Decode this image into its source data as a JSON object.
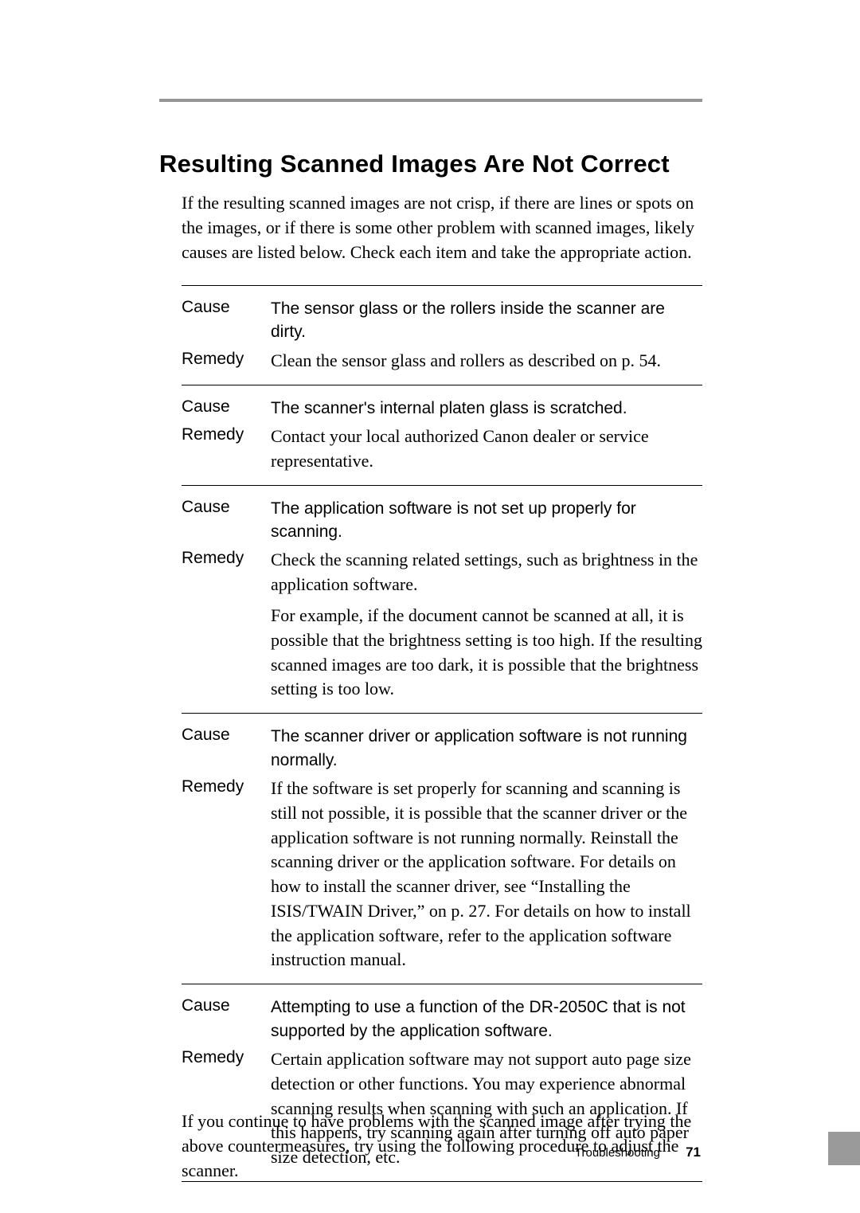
{
  "colors": {
    "top_rule": "#959595",
    "side_tab": "#9a9a9a",
    "text": "#000000",
    "background": "#ffffff",
    "divider": "#000000"
  },
  "typography": {
    "heading_family": "Arial, Helvetica, sans-serif",
    "heading_weight": "bold",
    "heading_size_pt": 23,
    "body_family": "Times New Roman, Times, serif",
    "body_size_pt": 16,
    "label_family": "Arial, Helvetica, sans-serif",
    "label_size_pt": 15
  },
  "heading": "Resulting Scanned Images Are Not Correct",
  "intro": "If the resulting scanned images are not crisp, if there are lines or spots on the images, or if there is some other problem with scanned images, likely causes are listed below. Check each item and take the appropriate action.",
  "labels": {
    "cause": "Cause",
    "remedy": "Remedy"
  },
  "groups": [
    {
      "cause": "The sensor glass or the rollers inside the scanner are dirty.",
      "remedy": [
        "Clean the sensor glass and rollers as described on p. 54."
      ]
    },
    {
      "cause": "The scanner's internal platen glass is scratched.",
      "remedy": [
        "Contact your local authorized Canon dealer or service representative."
      ]
    },
    {
      "cause": "The application software is not set up properly for scanning.",
      "remedy": [
        "Check the scanning related settings, such as brightness in the application software.",
        "For example, if the document cannot be scanned at all, it is possible that the brightness setting is too high. If the resulting scanned images are too dark, it is possible that the brightness setting is too low."
      ]
    },
    {
      "cause": "The scanner driver or application software is not running normally.",
      "remedy": [
        "If the software is set properly for scanning and scanning is still not possible, it is possible that the scanner driver or the application software is not running normally. Reinstall the scanning driver or the application software. For details on how to install the scanner driver, see “Installing the ISIS/TWAIN Driver,” on p. 27. For details on how to install the application software, refer to the application software instruction manual."
      ]
    },
    {
      "cause": "Attempting to use a function of the DR-2050C that is not supported by the application software.",
      "remedy": [
        "Certain application software may not support auto page size detection or other functions. You may experience abnormal scanning results when scanning with such an application. If this happens, try scanning again after turning off auto paper size detection, etc."
      ]
    }
  ],
  "outro": "If you continue to have problems with the scanned image after trying the above countermeasures, try using the following procedure to adjust the scanner.",
  "footer": {
    "section": "Troubleshooting",
    "page": "71"
  }
}
